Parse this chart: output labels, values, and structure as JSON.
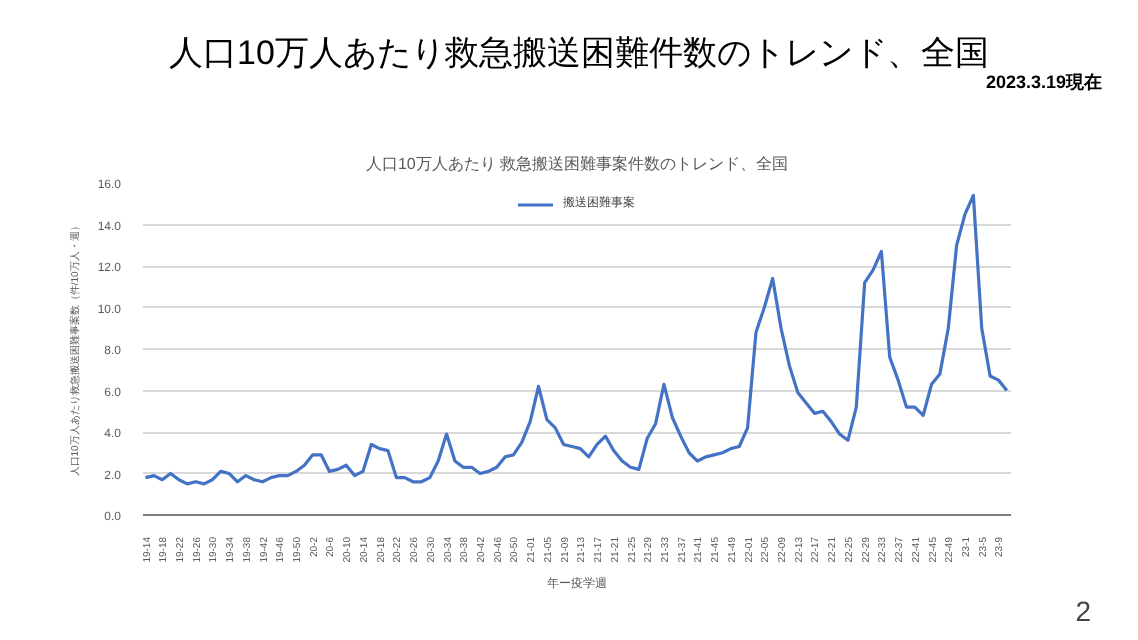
{
  "chart_data": {
    "type": "line",
    "title": "人口10万人あたり救急搬送困難件数のトレンド、全国",
    "subtitle": "人口10万人あたり 救急搬送困難事案件数のトレンド、全国",
    "xlabel": "年ー疫学週",
    "ylabel": "人口10万人あたり救急搬送困難事案数（件/10万人・週）",
    "annotations": [
      "2023.3.19現在",
      "2"
    ],
    "categories": [
      "19-14",
      null,
      "19-18",
      null,
      "19-22",
      null,
      "19-26",
      null,
      "19-30",
      null,
      "19-34",
      null,
      "19-38",
      null,
      "19-42",
      null,
      "19-46",
      null,
      "19-50",
      null,
      "20-2",
      null,
      "20-6",
      null,
      "20-10",
      null,
      "20-14",
      null,
      "20-18",
      null,
      "20-22",
      null,
      "20-26",
      null,
      "20-30",
      null,
      "20-34",
      null,
      "20-38",
      null,
      "20-42",
      null,
      "20-46",
      null,
      "20-50",
      null,
      "21-01",
      null,
      "21-05",
      null,
      "21-09",
      null,
      "21-13",
      null,
      "21-17",
      null,
      "21-21",
      null,
      "21-25",
      null,
      "21-29",
      null,
      "21-33",
      null,
      "21-37",
      null,
      "21-41",
      null,
      "21-45",
      null,
      "21-49",
      null,
      "22-01",
      null,
      "22-05",
      null,
      "22-09",
      null,
      "22-13",
      null,
      "22-17",
      null,
      "22-21",
      null,
      "22-25",
      null,
      "22-29",
      null,
      "22-33",
      null,
      "22-37",
      null,
      "22-41",
      null,
      "22-45",
      null,
      "22-49",
      null,
      "23-1",
      null,
      "23-5",
      null,
      "23-9",
      null
    ],
    "series": [
      {
        "name": "搬送困難事案",
        "color": "#4472c4",
        "values": [
          1.8,
          1.9,
          1.7,
          2.0,
          1.7,
          1.5,
          1.6,
          1.5,
          1.7,
          2.1,
          2.0,
          1.6,
          1.9,
          1.7,
          1.6,
          1.8,
          1.9,
          1.9,
          2.1,
          2.4,
          2.9,
          2.9,
          2.1,
          2.2,
          2.4,
          1.9,
          2.1,
          3.4,
          3.2,
          3.1,
          1.8,
          1.8,
          1.6,
          1.6,
          1.8,
          2.6,
          3.9,
          2.6,
          2.3,
          2.3,
          2.0,
          2.1,
          2.3,
          2.8,
          2.9,
          3.5,
          4.5,
          6.2,
          4.6,
          4.2,
          3.4,
          3.3,
          3.2,
          2.8,
          3.4,
          3.8,
          3.1,
          2.6,
          2.3,
          2.2,
          3.7,
          4.4,
          6.3,
          4.7,
          3.8,
          3.0,
          2.6,
          2.8,
          2.9,
          3.0,
          3.2,
          3.3,
          4.2,
          8.8,
          10.0,
          11.4,
          9.0,
          7.2,
          5.9,
          5.4,
          4.9,
          5.0,
          4.5,
          3.9,
          3.6,
          5.2,
          11.2,
          11.8,
          12.7,
          7.6,
          6.5,
          5.2,
          5.2,
          4.8,
          6.3,
          6.8,
          9.0,
          13.0,
          14.5,
          15.4,
          9.0,
          6.7,
          6.5,
          6.0
        ]
      }
    ],
    "ylim": [
      0,
      16
    ],
    "yticks": [
      {
        "value": 0,
        "label": "0.0"
      },
      {
        "value": 2,
        "label": "2.0"
      },
      {
        "value": 4,
        "label": "4.0"
      },
      {
        "value": 6,
        "label": "6.0"
      },
      {
        "value": 8,
        "label": "8.0"
      },
      {
        "value": 10,
        "label": "10.0"
      },
      {
        "value": 12,
        "label": "12.0"
      },
      {
        "value": 14,
        "label": "14.0"
      },
      {
        "value": 16,
        "label": "16.0"
      }
    ],
    "grid": "y",
    "legend": "top",
    "marker": "none",
    "line_style": "solid"
  }
}
